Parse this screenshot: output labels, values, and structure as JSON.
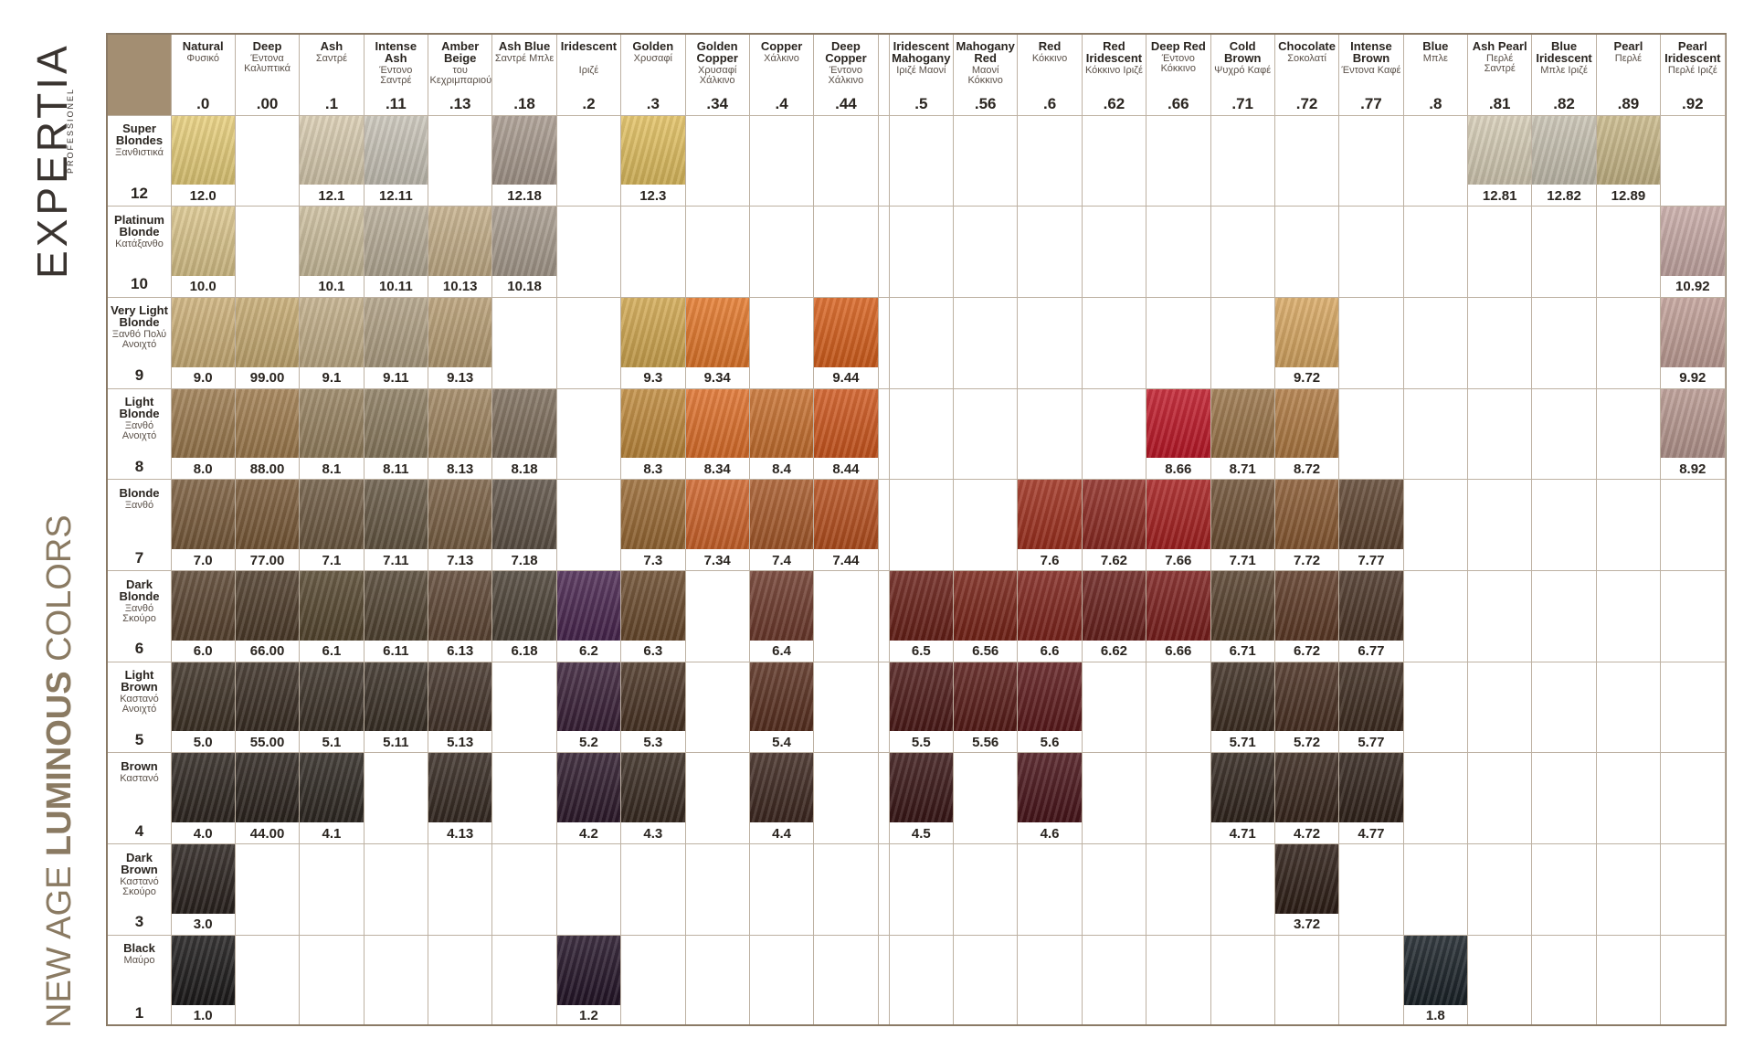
{
  "brand": {
    "name": "EXPERTIA",
    "sub": "PROFESSIONEL"
  },
  "tagline": {
    "light1": "NEW AGE",
    "bold": "LUMINOUS",
    "light2": "COLORS"
  },
  "table": {
    "columns": [
      {
        "name": "Natural",
        "greek": "Φυσικό",
        "code": ".0"
      },
      {
        "name": "Deep",
        "greek": "Έντονα Καλυπτικά",
        "code": ".00"
      },
      {
        "name": "Ash",
        "greek": "Σαντρέ",
        "code": ".1"
      },
      {
        "name": "Intense Ash",
        "greek": "Έντονο Σαντρέ",
        "code": ".11"
      },
      {
        "name": "Amber Beige",
        "greek": "του Κεχριμπαριού",
        "code": ".13"
      },
      {
        "name": "Ash Blue",
        "greek": "Σαντρέ Μπλε",
        "code": ".18"
      },
      {
        "name": "Iridescent",
        "greek": "Ιριζέ",
        "code": ".2"
      },
      {
        "name": "Golden",
        "greek": "Χρυσαφί",
        "code": ".3"
      },
      {
        "name": "Golden Copper",
        "greek": "Χρυσαφί Χάλκινο",
        "code": ".34"
      },
      {
        "name": "Copper",
        "greek": "Χάλκινο",
        "code": ".4"
      },
      {
        "name": "Deep Copper",
        "greek": "Έντονο Χάλκινο",
        "code": ".44"
      },
      {
        "name": "Iridescent Mahogany",
        "greek": "Ιριζέ Μαονί",
        "code": ".5"
      },
      {
        "name": "Mahogany Red",
        "greek": "Μαονί Κόκκινο",
        "code": ".56"
      },
      {
        "name": "Red",
        "greek": "Κόκκινο",
        "code": ".6"
      },
      {
        "name": "Red Iridescent",
        "greek": "Κόκκινο Ιριζέ",
        "code": ".62"
      },
      {
        "name": "Deep Red",
        "greek": "Έντονο Κόκκινο",
        "code": ".66"
      },
      {
        "name": "Cold Brown",
        "greek": "Ψυχρό Καφέ",
        "code": ".71"
      },
      {
        "name": "Chocolate",
        "greek": "Σοκολατί",
        "code": ".72"
      },
      {
        "name": "Intense Brown",
        "greek": "Έντονα Καφέ",
        "code": ".77"
      },
      {
        "name": "Blue",
        "greek": "Μπλε",
        "code": ".8"
      },
      {
        "name": "Ash Pearl",
        "greek": "Περλέ Σαντρέ",
        "code": ".81"
      },
      {
        "name": "Blue Iridescent",
        "greek": "Μπλε Ιριζέ",
        "code": ".82"
      },
      {
        "name": "Pearl",
        "greek": "Περλέ",
        "code": ".89"
      },
      {
        "name": "Pearl Iridescent",
        "greek": "Περλέ Ιριζέ",
        "code": ".92"
      }
    ],
    "rows": [
      {
        "name": "Super Blondes",
        "greek": "Ξανθιστικά",
        "level": "12",
        "cells": [
          {
            "code": "12.0",
            "color": "#e8cf7a"
          },
          null,
          {
            "code": "12.1",
            "color": "#d9ccb0"
          },
          {
            "code": "12.11",
            "color": "#c9c4b8"
          },
          null,
          {
            "code": "12.18",
            "color": "#a89a8e"
          },
          null,
          {
            "code": "12.3",
            "color": "#e2c060"
          },
          null,
          null,
          null,
          null,
          null,
          null,
          null,
          null,
          null,
          null,
          null,
          null,
          {
            "code": "12.81",
            "color": "#d6cdb6"
          },
          {
            "code": "12.82",
            "color": "#c8c2b2"
          },
          {
            "code": "12.89",
            "color": "#c9b888"
          },
          null
        ]
      },
      {
        "name": "Platinum Blonde",
        "greek": "Κατάξανθο",
        "level": "10",
        "cells": [
          {
            "code": "10.0",
            "color": "#dcc68c"
          },
          null,
          {
            "code": "10.1",
            "color": "#cdbf9e"
          },
          {
            "code": "10.11",
            "color": "#b8ad98"
          },
          {
            "code": "10.13",
            "color": "#c4ae88"
          },
          {
            "code": "10.18",
            "color": "#a89c8e"
          },
          null,
          null,
          null,
          null,
          null,
          null,
          null,
          null,
          null,
          null,
          null,
          null,
          null,
          null,
          null,
          null,
          null,
          {
            "code": "10.92",
            "color": "#c8aaa6"
          }
        ]
      },
      {
        "name": "Very Light Blonde",
        "greek": "Ξανθό Πολύ Ανοιχτό",
        "level": "9",
        "cells": [
          {
            "code": "9.0",
            "color": "#cdb078"
          },
          {
            "code": "99.00",
            "color": "#c7ab72"
          },
          {
            "code": "9.1",
            "color": "#c2ae88"
          },
          {
            "code": "9.11",
            "color": "#b0a084"
          },
          {
            "code": "9.13",
            "color": "#b89e74"
          },
          null,
          null,
          {
            "code": "9.3",
            "color": "#d2a850"
          },
          {
            "code": "9.34",
            "color": "#e5782a"
          },
          null,
          {
            "code": "9.44",
            "color": "#d8601c"
          },
          null,
          null,
          null,
          null,
          null,
          null,
          {
            "code": "9.72",
            "color": "#d9a862"
          },
          null,
          null,
          null,
          null,
          null,
          {
            "code": "9.92",
            "color": "#c2a098"
          }
        ]
      },
      {
        "name": "Light Blonde",
        "greek": "Ξανθό Ανοιχτό",
        "level": "8",
        "cells": [
          {
            "code": "8.0",
            "color": "#9c7a4e"
          },
          {
            "code": "88.00",
            "color": "#a07c4e"
          },
          {
            "code": "8.1",
            "color": "#978260"
          },
          {
            "code": "8.11",
            "color": "#8c7c60"
          },
          {
            "code": "8.13",
            "color": "#a08560"
          },
          {
            "code": "8.18",
            "color": "#7e6e5c"
          },
          null,
          {
            "code": "8.3",
            "color": "#c08a3c"
          },
          {
            "code": "8.34",
            "color": "#e0702a"
          },
          {
            "code": "8.4",
            "color": "#c8702e"
          },
          {
            "code": "8.44",
            "color": "#d0581e"
          },
          null,
          null,
          null,
          null,
          {
            "code": "8.66",
            "color": "#c01828"
          },
          {
            "code": "8.71",
            "color": "#9a7448"
          },
          {
            "code": "8.72",
            "color": "#b07a42"
          },
          null,
          null,
          null,
          null,
          null,
          {
            "code": "8.92",
            "color": "#b89890"
          }
        ]
      },
      {
        "name": "Blonde",
        "greek": "Ξανθό",
        "level": "7",
        "cells": [
          {
            "code": "7.0",
            "color": "#7a5c3c"
          },
          {
            "code": "77.00",
            "color": "#7a5a38"
          },
          {
            "code": "7.1",
            "color": "#6e5a42"
          },
          {
            "code": "7.11",
            "color": "#665844"
          },
          {
            "code": "7.13",
            "color": "#7a6044"
          },
          {
            "code": "7.18",
            "color": "#5e5246"
          },
          null,
          {
            "code": "7.3",
            "color": "#9a6a34"
          },
          {
            "code": "7.34",
            "color": "#d0642a"
          },
          {
            "code": "7.4",
            "color": "#a85a2a"
          },
          {
            "code": "7.44",
            "color": "#b8501e"
          },
          null,
          null,
          {
            "code": "7.6",
            "color": "#a0301e"
          },
          {
            "code": "7.62",
            "color": "#8e2a22"
          },
          {
            "code": "7.66",
            "color": "#a82020"
          },
          {
            "code": "7.71",
            "color": "#6e5034"
          },
          {
            "code": "7.72",
            "color": "#8a5a32"
          },
          {
            "code": "7.77",
            "color": "#5e4430"
          },
          null,
          null,
          null,
          null,
          null
        ]
      },
      {
        "name": "Dark Blonde",
        "greek": "Ξανθό Σκούρο",
        "level": "6",
        "cells": [
          {
            "code": "6.0",
            "color": "#5a4430"
          },
          {
            "code": "66.00",
            "color": "#4e3c2a"
          },
          {
            "code": "6.1",
            "color": "#56472f"
          },
          {
            "code": "6.11",
            "color": "#524432"
          },
          {
            "code": "6.13",
            "color": "#5e4634"
          },
          {
            "code": "6.18",
            "color": "#4c4236"
          },
          {
            "code": "6.2",
            "color": "#4a2650"
          },
          {
            "code": "6.3",
            "color": "#6a4a2c"
          },
          null,
          {
            "code": "6.4",
            "color": "#6e3a2c"
          },
          null,
          {
            "code": "6.5",
            "color": "#6a2018"
          },
          {
            "code": "6.56",
            "color": "#7a2418"
          },
          {
            "code": "6.6",
            "color": "#80241c"
          },
          {
            "code": "6.62",
            "color": "#6a201c"
          },
          {
            "code": "6.66",
            "color": "#7c1e1c"
          },
          {
            "code": "6.71",
            "color": "#56402c"
          },
          {
            "code": "6.72",
            "color": "#5e3a26"
          },
          {
            "code": "6.77",
            "color": "#4a3426"
          },
          null,
          null,
          null,
          null,
          null
        ]
      },
      {
        "name": "Light Brown",
        "greek": "Καστανό Ανοιχτό",
        "level": "5",
        "cells": [
          {
            "code": "5.0",
            "color": "#3e3226"
          },
          {
            "code": "55.00",
            "color": "#3a2e24"
          },
          {
            "code": "5.1",
            "color": "#3c3228"
          },
          {
            "code": "5.11",
            "color": "#3a3026"
          },
          {
            "code": "5.13",
            "color": "#44342a"
          },
          null,
          {
            "code": "5.2",
            "color": "#3a2038"
          },
          {
            "code": "5.3",
            "color": "#4a3424"
          },
          null,
          {
            "code": "5.4",
            "color": "#5a3020"
          },
          null,
          {
            "code": "5.5",
            "color": "#4e1a18"
          },
          {
            "code": "5.56",
            "color": "#5a1c18"
          },
          {
            "code": "5.6",
            "color": "#5e1a1c"
          },
          null,
          null,
          {
            "code": "5.71",
            "color": "#3e2e22"
          },
          {
            "code": "5.72",
            "color": "#4a3022"
          },
          {
            "code": "5.77",
            "color": "#3e2c20"
          },
          null,
          null,
          null,
          null,
          null
        ]
      },
      {
        "name": "Brown",
        "greek": "Καστανό",
        "level": "4",
        "cells": [
          {
            "code": "4.0",
            "color": "#2e2620"
          },
          {
            "code": "44.00",
            "color": "#2c241e"
          },
          {
            "code": "4.1",
            "color": "#2e2822"
          },
          null,
          {
            "code": "4.13",
            "color": "#362a22"
          },
          null,
          {
            "code": "4.2",
            "color": "#2e1a2c"
          },
          {
            "code": "4.3",
            "color": "#382a20"
          },
          null,
          {
            "code": "4.4",
            "color": "#3e2820"
          },
          null,
          {
            "code": "4.5",
            "color": "#3a1616"
          },
          null,
          {
            "code": "4.6",
            "color": "#4a141a"
          },
          null,
          null,
          {
            "code": "4.71",
            "color": "#30241c"
          },
          {
            "code": "4.72",
            "color": "#38261c"
          },
          {
            "code": "4.77",
            "color": "#30221a"
          },
          null,
          null,
          null,
          null,
          null
        ]
      },
      {
        "name": "Dark Brown",
        "greek": "Καστανό Σκούρο",
        "level": "3",
        "cells": [
          {
            "code": "3.0",
            "color": "#2a221e"
          },
          null,
          null,
          null,
          null,
          null,
          null,
          null,
          null,
          null,
          null,
          null,
          null,
          null,
          null,
          null,
          null,
          {
            "code": "3.72",
            "color": "#2e1e16"
          },
          null,
          null,
          null,
          null,
          null,
          null
        ]
      },
      {
        "name": "Black",
        "greek": "Μαύρο",
        "level": "1",
        "cells": [
          {
            "code": "1.0",
            "color": "#1c1a1a"
          },
          null,
          null,
          null,
          null,
          null,
          {
            "code": "1.2",
            "color": "#241428"
          },
          null,
          null,
          null,
          null,
          null,
          null,
          null,
          null,
          null,
          null,
          null,
          null,
          {
            "code": "1.8",
            "color": "#1a2228"
          },
          null,
          null,
          null,
          null
        ]
      }
    ]
  }
}
